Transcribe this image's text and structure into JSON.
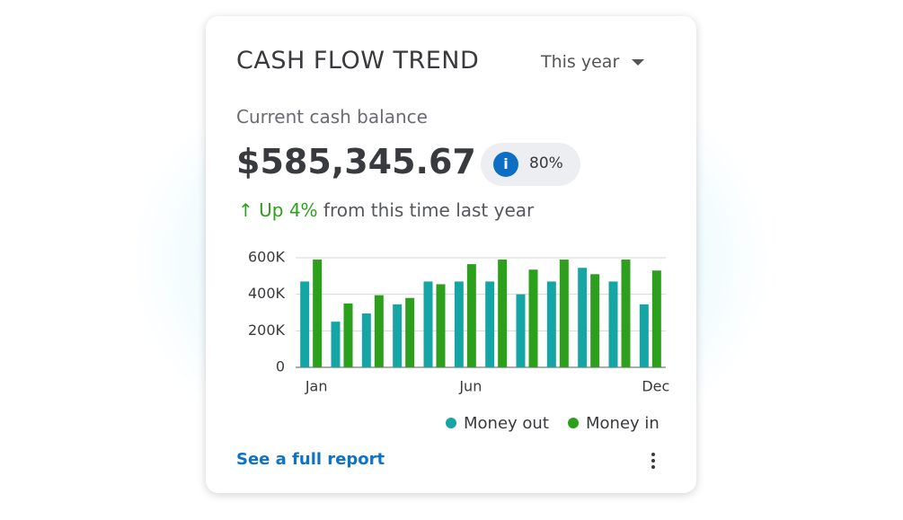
{
  "header": {
    "title": "CASH FLOW TREND",
    "period": "This year"
  },
  "balance": {
    "label": "Current cash balance",
    "amount": "$585,345.67",
    "badge": "80%"
  },
  "change": {
    "amount": "Up 4%",
    "text": "from this time last year"
  },
  "chart_data": {
    "type": "bar",
    "categories": [
      "Jan",
      null,
      null,
      null,
      null,
      "Jun",
      null,
      null,
      null,
      null,
      null,
      "Dec"
    ],
    "series": [
      {
        "name": "Money out",
        "color": "#16a5a5",
        "values": [
          470000,
          250000,
          295000,
          345000,
          470000,
          470000,
          470000,
          400000,
          470000,
          545000,
          470000,
          345000
        ]
      },
      {
        "name": "Money in",
        "color": "#2ca01c",
        "values": [
          590000,
          350000,
          395000,
          380000,
          455000,
          565000,
          590000,
          535000,
          590000,
          510000,
          590000,
          530000
        ]
      }
    ],
    "ylim": [
      0,
      600000
    ],
    "yticks": [
      0,
      {
        "value": 200000,
        "label": "200K"
      },
      {
        "value": 400000,
        "label": "400K"
      },
      {
        "value": 600000,
        "label": "600K"
      }
    ],
    "grid": true
  },
  "footer": {
    "link": "See a full report"
  }
}
